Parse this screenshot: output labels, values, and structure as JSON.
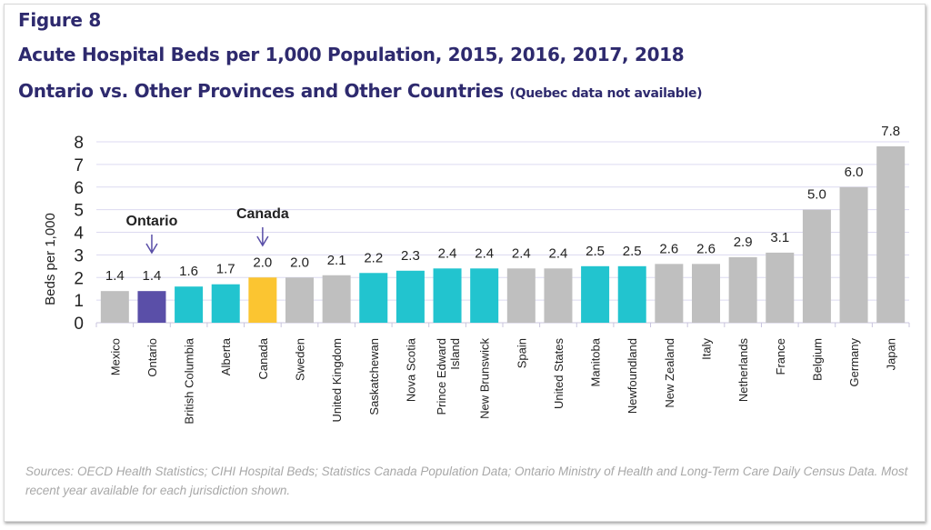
{
  "figure_label": "Figure 8",
  "chart_data": {
    "type": "bar",
    "title": "Acute Hospital Beds per 1,000 Population, 2015, 2016, 2017, 2018",
    "subtitle": "Ontario vs. Other Provinces and Other Countries",
    "subtitle_note": "(Quebec data not available)",
    "xlabel": "",
    "ylabel": "Beds per 1,000",
    "ylim": [
      0,
      8
    ],
    "yticks": [
      "0",
      "1",
      "2",
      "3",
      "4",
      "5",
      "6",
      "7",
      "8"
    ],
    "grid": true,
    "categories": [
      "Mexico",
      "Ontario",
      "British Columbia",
      "Alberta",
      "Canada",
      "Sweden",
      "United Kingdom",
      "Saskatchewan",
      "Nova Scotia",
      "Prince Edward Island",
      "New Brunswick",
      "Spain",
      "United States",
      "Manitoba",
      "Newfoundland",
      "New Zealand",
      "Italy",
      "Netherlands",
      "France",
      "Belgium",
      "Germany",
      "Japan"
    ],
    "values": [
      1.4,
      1.4,
      1.6,
      1.7,
      2.0,
      2.0,
      2.1,
      2.2,
      2.3,
      2.4,
      2.4,
      2.4,
      2.4,
      2.5,
      2.5,
      2.6,
      2.6,
      2.9,
      3.1,
      5.0,
      6.0,
      7.8
    ],
    "data_labels": [
      "1.4",
      "1.4",
      "1.6",
      "1.7",
      "2.0",
      "2.0",
      "2.1",
      "2.2",
      "2.3",
      "2.4",
      "2.4",
      "2.4",
      "2.4",
      "2.5",
      "2.5",
      "2.6",
      "2.6",
      "2.9",
      "3.1",
      "5.0",
      "6.0",
      "7.8"
    ],
    "bar_groups": [
      "country",
      "ontario",
      "province",
      "province",
      "canada",
      "country",
      "country",
      "province",
      "province",
      "province",
      "province",
      "country",
      "country",
      "province",
      "province",
      "country",
      "country",
      "country",
      "country",
      "country",
      "country",
      "country"
    ],
    "colors": {
      "country": "#bfbfbf",
      "ontario": "#5a4fa8",
      "province": "#22c4cf",
      "canada": "#fbc531",
      "title": "#2e2a6e"
    },
    "annotations": [
      {
        "text": "Ontario",
        "category": "Ontario"
      },
      {
        "text": "Canada",
        "category": "Canada"
      }
    ]
  },
  "source": "Sources: OECD Health Statistics; CIHI Hospital Beds; Statistics Canada Population Data; Ontario Ministry of Health and Long-Term Care Daily Census Data. Most recent year available for each jurisdiction shown."
}
